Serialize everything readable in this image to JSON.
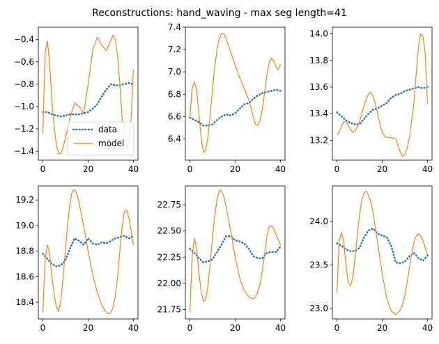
{
  "figure": {
    "title": "Reconstructions: hand_waving - max seg length=41"
  },
  "colors": {
    "data": "#1f77b4",
    "model": "#ff7f0e"
  },
  "chart_data": [
    {
      "type": "line",
      "xlim": [
        -2,
        42
      ],
      "ylim": [
        -1.48,
        -0.29
      ],
      "xticks": [
        0,
        20,
        40
      ],
      "yticks": [
        -1.4,
        -1.2,
        -1.0,
        -0.8,
        -0.6,
        -0.4
      ],
      "xtick_labels": [
        "0",
        "20",
        "40"
      ],
      "ytick_labels": [
        "−1.4",
        "−1.2",
        "−1.0",
        "−0.8",
        "−0.6",
        "−0.4"
      ],
      "legend": {
        "position": "lower-left",
        "entries": [
          "data",
          "model"
        ]
      },
      "series": [
        {
          "name": "data",
          "style": "dotted",
          "x": [
            0,
            2,
            4,
            6,
            8,
            10,
            12,
            14,
            16,
            18,
            20,
            22,
            24,
            26,
            28,
            30,
            32,
            34,
            36,
            38,
            40
          ],
          "y": [
            -1.05,
            -1.05,
            -1.07,
            -1.08,
            -1.09,
            -1.08,
            -1.07,
            -1.07,
            -1.07,
            -1.06,
            -1.05,
            -1.02,
            -0.98,
            -0.91,
            -0.85,
            -0.8,
            -0.81,
            -0.81,
            -0.8,
            -0.79,
            -0.8
          ]
        },
        {
          "name": "model",
          "style": "solid",
          "x": [
            0,
            1,
            2,
            3,
            4,
            5,
            6,
            7,
            8,
            9,
            10,
            12,
            14,
            16,
            18,
            20,
            22,
            24,
            26,
            28,
            30,
            31,
            32,
            33,
            34,
            35,
            36,
            37,
            38,
            39,
            40
          ],
          "y": [
            -1.24,
            -0.52,
            -0.41,
            -0.62,
            -0.95,
            -1.18,
            -1.35,
            -1.42,
            -1.42,
            -1.36,
            -1.28,
            -1.1,
            -0.97,
            -1.0,
            -1.06,
            -0.8,
            -0.5,
            -0.38,
            -0.45,
            -0.5,
            -0.41,
            -0.36,
            -0.4,
            -0.55,
            -0.8,
            -1.1,
            -1.3,
            -1.37,
            -1.3,
            -1.1,
            -0.67
          ]
        }
      ]
    },
    {
      "type": "line",
      "xlim": [
        -2,
        42
      ],
      "ylim": [
        6.21,
        7.4
      ],
      "xticks": [
        0,
        20,
        40
      ],
      "yticks": [
        6.4,
        6.6,
        6.8,
        7.0,
        7.2,
        7.4
      ],
      "xtick_labels": [
        "0",
        "20",
        "40"
      ],
      "ytick_labels": [
        "6.4",
        "6.6",
        "6.8",
        "7.0",
        "7.2",
        "7.4"
      ],
      "series": [
        {
          "name": "data",
          "style": "dotted",
          "x": [
            0,
            2,
            4,
            6,
            8,
            10,
            12,
            14,
            16,
            18,
            20,
            22,
            24,
            26,
            28,
            30,
            32,
            34,
            36,
            38,
            40
          ],
          "y": [
            6.59,
            6.57,
            6.55,
            6.52,
            6.52,
            6.53,
            6.57,
            6.6,
            6.62,
            6.61,
            6.63,
            6.67,
            6.71,
            6.72,
            6.76,
            6.79,
            6.81,
            6.82,
            6.83,
            6.84,
            6.83
          ]
        },
        {
          "name": "model",
          "style": "solid",
          "x": [
            0,
            1,
            2,
            3,
            4,
            5,
            6,
            7,
            8,
            9,
            10,
            11,
            12,
            13,
            14,
            15,
            16,
            18,
            20,
            22,
            24,
            26,
            28,
            29,
            30,
            31,
            32,
            33,
            34,
            35,
            36,
            37,
            38,
            39,
            40
          ],
          "y": [
            6.59,
            6.85,
            6.91,
            6.84,
            6.62,
            6.4,
            6.28,
            6.3,
            6.42,
            6.62,
            6.85,
            7.05,
            7.2,
            7.3,
            7.34,
            7.34,
            7.3,
            7.18,
            7.06,
            6.95,
            6.85,
            6.75,
            6.6,
            6.53,
            6.52,
            6.56,
            6.67,
            6.82,
            6.97,
            7.08,
            7.12,
            7.1,
            7.05,
            7.02,
            7.07
          ]
        }
      ]
    },
    {
      "type": "line",
      "xlim": [
        -2,
        42
      ],
      "ylim": [
        13.05,
        14.05
      ],
      "xticks": [
        0,
        20,
        40
      ],
      "yticks": [
        13.2,
        13.4,
        13.6,
        13.8,
        14.0
      ],
      "xtick_labels": [
        "0",
        "20",
        "40"
      ],
      "ytick_labels": [
        "13.2",
        "13.4",
        "13.6",
        "13.8",
        "14.0"
      ],
      "series": [
        {
          "name": "data",
          "style": "dotted",
          "x": [
            0,
            2,
            4,
            6,
            8,
            10,
            12,
            14,
            16,
            18,
            20,
            22,
            24,
            26,
            28,
            30,
            32,
            34,
            36,
            38,
            40
          ],
          "y": [
            13.41,
            13.38,
            13.35,
            13.33,
            13.32,
            13.32,
            13.36,
            13.4,
            13.43,
            13.44,
            13.46,
            13.48,
            13.52,
            13.54,
            13.55,
            13.57,
            13.58,
            13.59,
            13.6,
            13.59,
            13.6
          ]
        },
        {
          "name": "model",
          "style": "solid",
          "x": [
            0,
            1,
            2,
            3,
            4,
            5,
            6,
            7,
            8,
            9,
            10,
            11,
            12,
            13,
            14,
            15,
            16,
            17,
            18,
            19,
            20,
            21,
            22,
            24,
            26,
            27,
            28,
            29,
            30,
            31,
            32,
            34,
            35,
            36,
            37,
            38,
            39,
            40
          ],
          "y": [
            13.24,
            13.26,
            13.3,
            13.34,
            13.34,
            13.31,
            13.28,
            13.26,
            13.27,
            13.3,
            13.34,
            13.4,
            13.46,
            13.51,
            13.55,
            13.56,
            13.53,
            13.47,
            13.4,
            13.32,
            13.26,
            13.23,
            13.22,
            13.22,
            13.21,
            13.16,
            13.11,
            13.08,
            13.09,
            13.14,
            13.22,
            13.48,
            13.7,
            13.9,
            14.0,
            13.98,
            13.85,
            13.47
          ]
        }
      ]
    },
    {
      "type": "line",
      "xlim": [
        -2,
        42
      ],
      "ylim": [
        18.27,
        19.31
      ],
      "xticks": [
        0,
        20,
        40
      ],
      "yticks": [
        18.4,
        18.6,
        18.8,
        19.0,
        19.2
      ],
      "xtick_labels": [
        "0",
        "20",
        "40"
      ],
      "ytick_labels": [
        "18.4",
        "18.6",
        "18.8",
        "19.0",
        "19.2"
      ],
      "series": [
        {
          "name": "data",
          "style": "dotted",
          "x": [
            0,
            2,
            4,
            6,
            8,
            10,
            12,
            14,
            16,
            18,
            20,
            22,
            24,
            26,
            28,
            30,
            32,
            34,
            36,
            38,
            40
          ],
          "y": [
            18.78,
            18.74,
            18.7,
            18.68,
            18.69,
            18.73,
            18.82,
            18.9,
            18.88,
            18.85,
            18.9,
            18.86,
            18.85,
            18.87,
            18.86,
            18.88,
            18.9,
            18.91,
            18.92,
            18.9,
            18.92
          ]
        },
        {
          "name": "model",
          "style": "solid",
          "x": [
            0,
            1,
            2,
            3,
            4,
            5,
            6,
            7,
            8,
            9,
            10,
            11,
            12,
            13,
            14,
            15,
            16,
            18,
            20,
            22,
            24,
            26,
            28,
            29,
            30,
            31,
            32,
            33,
            34,
            35,
            36,
            37,
            38,
            39,
            40
          ],
          "y": [
            18.32,
            18.73,
            18.85,
            18.78,
            18.6,
            18.46,
            18.36,
            18.33,
            18.42,
            18.6,
            18.82,
            19.02,
            19.18,
            19.27,
            19.28,
            19.25,
            19.18,
            19.0,
            18.8,
            18.62,
            18.48,
            18.38,
            18.32,
            18.31,
            18.32,
            18.36,
            18.45,
            18.6,
            18.8,
            18.99,
            19.11,
            19.12,
            19.06,
            18.96,
            18.85
          ]
        }
      ]
    },
    {
      "type": "line",
      "xlim": [
        -2,
        42
      ],
      "ylim": [
        21.66,
        22.93
      ],
      "xticks": [
        0,
        20,
        40
      ],
      "yticks": [
        21.75,
        22.0,
        22.25,
        22.5,
        22.75
      ],
      "xtick_labels": [
        "0",
        "20",
        "40"
      ],
      "ytick_labels": [
        "21.75",
        "22.00",
        "22.25",
        "22.50",
        "22.75"
      ],
      "series": [
        {
          "name": "data",
          "style": "dotted",
          "x": [
            0,
            2,
            4,
            6,
            8,
            10,
            12,
            14,
            16,
            18,
            20,
            22,
            24,
            26,
            28,
            30,
            32,
            34,
            36,
            38,
            40
          ],
          "y": [
            22.33,
            22.29,
            22.24,
            22.2,
            22.21,
            22.23,
            22.3,
            22.37,
            22.45,
            22.45,
            22.41,
            22.4,
            22.38,
            22.33,
            22.26,
            22.24,
            22.24,
            22.29,
            22.3,
            22.3,
            22.35
          ]
        },
        {
          "name": "model",
          "style": "solid",
          "x": [
            0,
            1,
            2,
            3,
            4,
            5,
            6,
            7,
            8,
            9,
            10,
            11,
            12,
            13,
            14,
            15,
            16,
            18,
            20,
            22,
            24,
            26,
            28,
            29,
            30,
            31,
            32,
            33,
            34,
            35,
            36,
            37,
            38,
            39,
            40
          ],
          "y": [
            21.72,
            22.25,
            22.43,
            22.33,
            22.1,
            21.92,
            21.83,
            21.84,
            21.98,
            22.2,
            22.45,
            22.65,
            22.8,
            22.89,
            22.88,
            22.83,
            22.73,
            22.5,
            22.25,
            22.05,
            21.93,
            21.87,
            21.85,
            21.87,
            21.92,
            22.0,
            22.12,
            22.28,
            22.45,
            22.54,
            22.55,
            22.52,
            22.47,
            22.42,
            22.36
          ]
        }
      ]
    },
    {
      "type": "line",
      "xlim": [
        -2,
        42
      ],
      "ylim": [
        22.88,
        24.41
      ],
      "xticks": [
        0,
        20,
        40
      ],
      "yticks": [
        23.0,
        23.5,
        24.0
      ],
      "xtick_labels": [
        "0",
        "20",
        "40"
      ],
      "ytick_labels": [
        "23.0",
        "23.5",
        "24.0"
      ],
      "series": [
        {
          "name": "data",
          "style": "dotted",
          "x": [
            0,
            2,
            4,
            6,
            8,
            10,
            12,
            14,
            16,
            18,
            20,
            22,
            24,
            26,
            28,
            30,
            32,
            34,
            36,
            38,
            40
          ],
          "y": [
            23.75,
            23.72,
            23.68,
            23.66,
            23.66,
            23.7,
            23.82,
            23.9,
            23.92,
            23.86,
            23.84,
            23.82,
            23.72,
            23.53,
            23.52,
            23.54,
            23.6,
            23.64,
            23.58,
            23.55,
            23.61
          ]
        },
        {
          "name": "model",
          "style": "solid",
          "x": [
            0,
            1,
            2,
            3,
            4,
            5,
            6,
            7,
            8,
            9,
            10,
            11,
            12,
            13,
            14,
            15,
            16,
            18,
            20,
            22,
            24,
            26,
            28,
            29,
            30,
            31,
            32,
            33,
            34,
            35,
            36,
            37,
            38,
            39,
            40
          ],
          "y": [
            23.18,
            23.78,
            23.87,
            23.78,
            23.5,
            23.3,
            23.26,
            23.35,
            23.58,
            23.85,
            24.08,
            24.25,
            24.33,
            24.35,
            24.3,
            24.22,
            24.1,
            23.75,
            23.4,
            23.12,
            22.97,
            22.93,
            22.98,
            23.05,
            23.15,
            23.3,
            23.47,
            23.62,
            23.76,
            23.83,
            23.86,
            23.84,
            23.78,
            23.7,
            23.62
          ]
        }
      ]
    }
  ]
}
